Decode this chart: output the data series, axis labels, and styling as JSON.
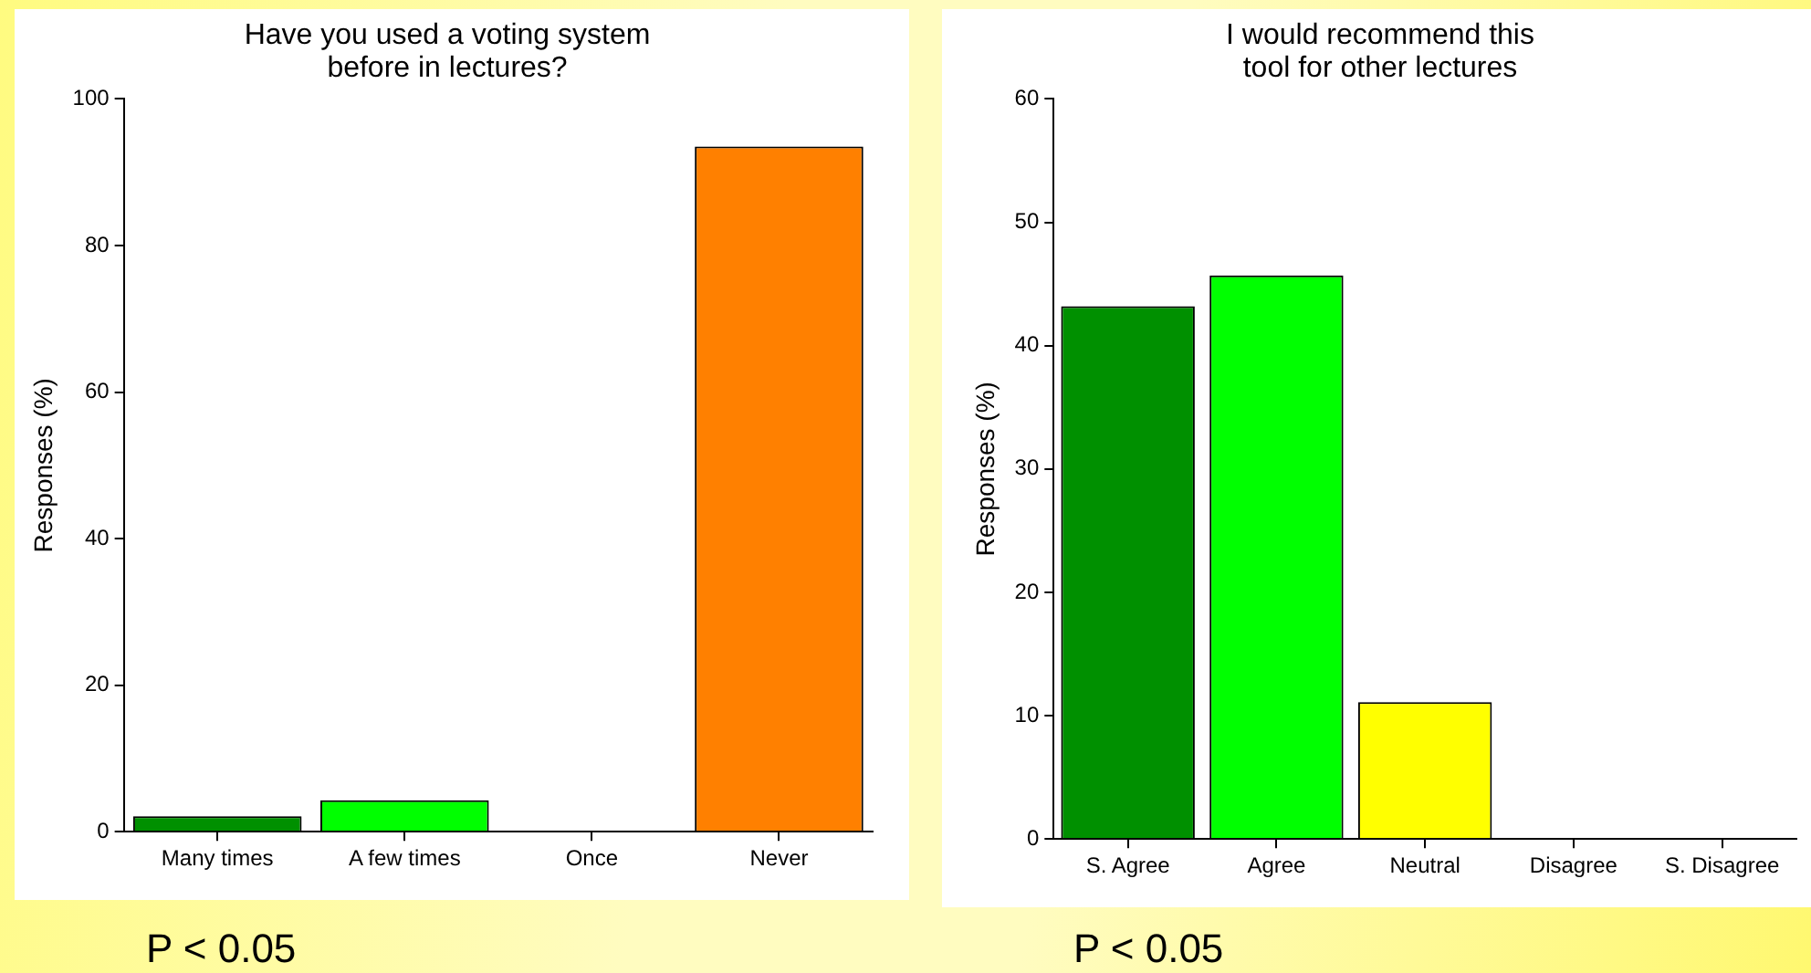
{
  "chart_data": [
    {
      "type": "bar",
      "title": "Have you used a voting system\nbefore in lectures?",
      "ylabel": "Responses (%)",
      "categories": [
        "Many times",
        "A few times",
        "Once",
        "Never"
      ],
      "values": [
        2.1,
        4.3,
        0,
        93.5
      ],
      "colors": [
        "#009000",
        "#00ff00",
        "#ffff00",
        "#ff8000"
      ],
      "ylim": [
        0,
        100
      ],
      "yticks": [
        0,
        20,
        40,
        60,
        80,
        100
      ],
      "grid": false,
      "legend": false,
      "annotations": [
        "P < 0.05"
      ]
    },
    {
      "type": "bar",
      "title": "I would recommend this\ntool for other lectures",
      "ylabel": "Responses (%)",
      "categories": [
        "S. Agree",
        "Agree",
        "Neutral",
        "Disagree",
        "S. Disagree"
      ],
      "values": [
        43.2,
        45.7,
        11.1,
        0,
        0
      ],
      "colors": [
        "#009000",
        "#00ff00",
        "#ffff00",
        "#ff8000",
        "#ff0000"
      ],
      "ylim": [
        0,
        60
      ],
      "yticks": [
        0,
        10,
        20,
        30,
        40,
        50,
        60
      ],
      "grid": false,
      "legend": false,
      "annotations": [
        "P < 0.05"
      ]
    }
  ]
}
